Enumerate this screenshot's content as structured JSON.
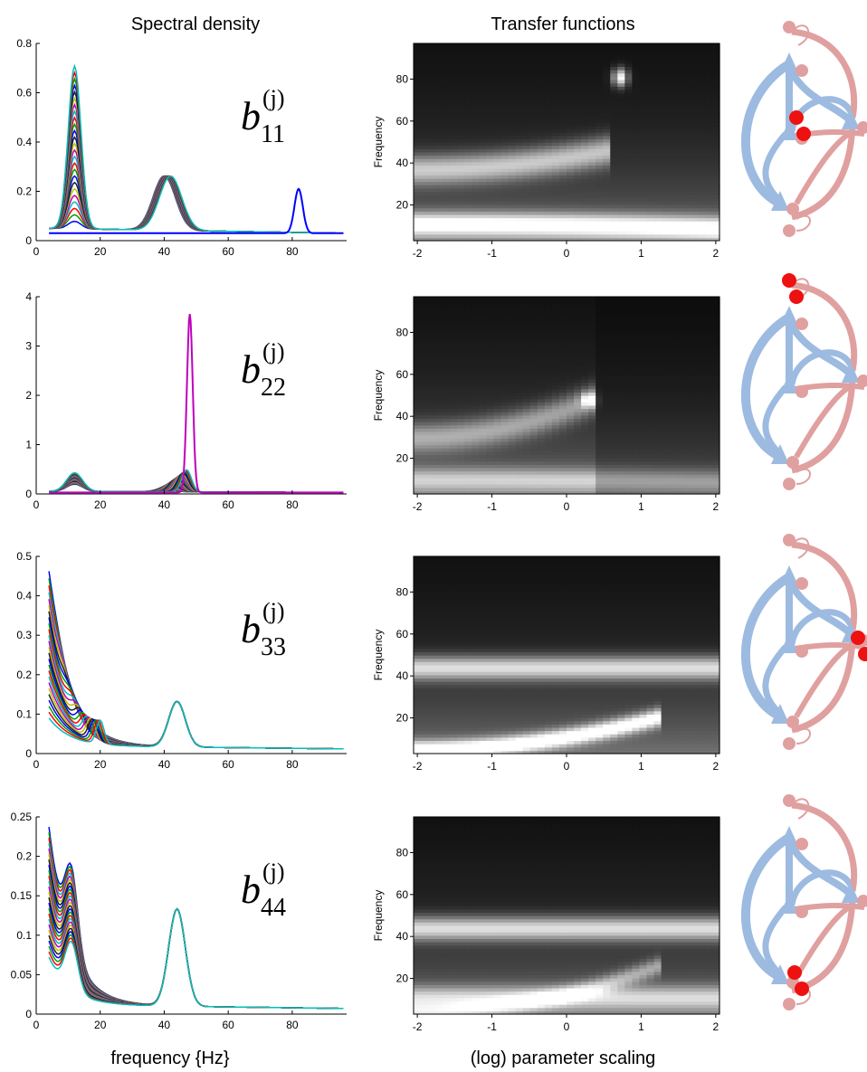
{
  "titles": {
    "spectral": "Spectral density",
    "transfer": "Transfer functions"
  },
  "xlabels": {
    "spectral": "frequency {Hz}",
    "transfer": "(log) parameter scaling"
  },
  "heatmap_ylabel": "Frequency",
  "colors": {
    "node_blue": "#9dbbe0",
    "node_pink": "#e0a0a0",
    "highlight_red": "#ee1111",
    "line_colors": [
      "#0000ff",
      "#00a000",
      "#ff0000",
      "#00bfbf",
      "#bf00bf",
      "#bfbf00",
      "#202020"
    ]
  },
  "chart_data": [
    {
      "type": "line",
      "panel": "spectral",
      "label": "b11(j)",
      "label_base": "b",
      "label_sub": "11",
      "label_sup": "(j)",
      "xlim": [
        0,
        97
      ],
      "ylim": [
        0,
        0.8
      ],
      "xticks": [
        0,
        20,
        40,
        60,
        80
      ],
      "yticks": [
        0,
        0.2,
        0.4,
        0.6,
        0.8
      ],
      "ytick_labels": [
        "0",
        "0.2",
        "0.4",
        "0.6",
        "0.8"
      ],
      "n_series": 25,
      "baseline": 0.05,
      "peaks_start": [
        [
          12,
          0.03,
          2
        ],
        [
          40,
          0.22,
          3.5
        ]
      ],
      "peaks_end": [
        [
          12,
          0.66,
          2
        ],
        [
          42,
          0.22,
          3.5
        ]
      ],
      "outlier_peak": [
        82,
        0.18,
        1.3
      ]
    },
    {
      "type": "line",
      "panel": "spectral",
      "label": "b22(j)",
      "label_base": "b",
      "label_sub": "22",
      "label_sup": "(j)",
      "xlim": [
        0,
        97
      ],
      "ylim": [
        0,
        4
      ],
      "xticks": [
        0,
        20,
        40,
        60,
        80
      ],
      "yticks": [
        0,
        1,
        2,
        3,
        4
      ],
      "ytick_labels": [
        "0",
        "1",
        "2",
        "3",
        "4"
      ],
      "n_series": 25,
      "baseline": 0.05,
      "peaks_start": [
        [
          12,
          0.15,
          2.5
        ],
        [
          40,
          0.05,
          3
        ]
      ],
      "peaks_end": [
        [
          12,
          0.38,
          2.5
        ],
        [
          47,
          0.45,
          1.5
        ]
      ],
      "outlier_peak": [
        48,
        3.62,
        0.9
      ]
    },
    {
      "type": "line",
      "panel": "spectral",
      "label": "b33(j)",
      "label_base": "b",
      "label_sub": "33",
      "label_sup": "(j)",
      "xlim": [
        0,
        97
      ],
      "ylim": [
        0,
        0.5
      ],
      "xticks": [
        0,
        20,
        40,
        60,
        80
      ],
      "yticks": [
        0,
        0.1,
        0.2,
        0.3,
        0.4,
        0.5
      ],
      "ytick_labels": [
        "0",
        "0.1",
        "0.2",
        "0.3",
        "0.4",
        "0.5"
      ],
      "n_series": 25,
      "baseline": 0.02,
      "lowfreq_start": 0.43,
      "lowfreq_end": 0.07,
      "peaks_start": [
        [
          6,
          0.02,
          2
        ],
        [
          44,
          0.115,
          2.6
        ]
      ],
      "peaks_end": [
        [
          20,
          0.06,
          1.2
        ],
        [
          44,
          0.115,
          2.6
        ]
      ],
      "outlier_peak": null
    },
    {
      "type": "line",
      "panel": "spectral",
      "label": "b44(j)",
      "label_base": "b",
      "label_sub": "44",
      "label_sup": "(j)",
      "xlim": [
        0,
        97
      ],
      "ylim": [
        0,
        0.25
      ],
      "xticks": [
        0,
        20,
        40,
        60,
        80
      ],
      "yticks": [
        0,
        0.05,
        0.1,
        0.15,
        0.2,
        0.25
      ],
      "ytick_labels": [
        "0",
        "0.05",
        "0.1",
        "0.15",
        "0.2",
        "0.25"
      ],
      "n_series": 25,
      "baseline": 0.012,
      "lowfreq_start": 0.225,
      "lowfreq_end": 0.06,
      "peaks_start": [
        [
          11,
          0.1,
          2
        ],
        [
          44,
          0.123,
          2.6
        ]
      ],
      "peaks_end": [
        [
          11,
          0.06,
          2
        ],
        [
          44,
          0.123,
          2.6
        ]
      ],
      "outlier_peak": null
    },
    {
      "type": "heatmap",
      "panel": "transfer",
      "xlim": [
        -2.05,
        2.05
      ],
      "ylim": [
        3,
        97
      ],
      "xticks": [
        -2,
        -1,
        0,
        1,
        2
      ],
      "yticks": [
        20,
        40,
        60,
        80
      ],
      "nx": 42,
      "ny": 60,
      "ridges": [
        {
          "f0": 37,
          "f1": 46,
          "x_end": 0.55,
          "w": 5,
          "a": 0.6
        },
        {
          "f0": 11,
          "f1": 9,
          "x_end": 2.05,
          "w": 4,
          "a": 0.75
        }
      ],
      "spot": {
        "x": 0.72,
        "f": 81,
        "w": 3,
        "a": 0.9
      },
      "drop_after": null
    },
    {
      "type": "heatmap",
      "panel": "transfer",
      "xlim": [
        -2.05,
        2.05
      ],
      "ylim": [
        3,
        97
      ],
      "xticks": [
        -2,
        -1,
        0,
        1,
        2
      ],
      "yticks": [
        20,
        40,
        60,
        80
      ],
      "nx": 42,
      "ny": 60,
      "ridges": [
        {
          "f0": 30,
          "f1": 48,
          "x_end": 0.35,
          "w": 5,
          "a": 0.45
        },
        {
          "f0": 10,
          "f1": 9,
          "x_end": 2.05,
          "w": 4,
          "a": 0.45
        }
      ],
      "spot": {
        "x": 0.3,
        "f": 48,
        "w": 2.5,
        "a": 0.6
      },
      "drop_after": 0.42
    },
    {
      "type": "heatmap",
      "panel": "transfer",
      "xlim": [
        -2.05,
        2.05
      ],
      "ylim": [
        3,
        97
      ],
      "xticks": [
        -2,
        -1,
        0,
        1,
        2
      ],
      "yticks": [
        20,
        40,
        60,
        80
      ],
      "nx": 42,
      "ny": 60,
      "ridges": [
        {
          "f0": 44,
          "f1": 44,
          "x_end": 2.05,
          "w": 4,
          "a": 0.7
        },
        {
          "f0": 5,
          "f1": 21,
          "x_end": 1.3,
          "w": 3,
          "a": 0.8
        }
      ],
      "spot": null,
      "drop_after": null
    },
    {
      "type": "heatmap",
      "panel": "transfer",
      "xlim": [
        -2.05,
        2.05
      ],
      "ylim": [
        3,
        97
      ],
      "xticks": [
        -2,
        -1,
        0,
        1,
        2
      ],
      "yticks": [
        20,
        40,
        60,
        80
      ],
      "nx": 42,
      "ny": 60,
      "ridges": [
        {
          "f0": 44,
          "f1": 44,
          "x_end": 2.05,
          "w": 4,
          "a": 0.7
        },
        {
          "f0": 11,
          "f1": 11,
          "x_end": 2.05,
          "w": 4,
          "a": 0.5
        },
        {
          "f0": 4,
          "f1": 27,
          "x_end": 1.3,
          "w": 3,
          "a": 0.4
        }
      ],
      "spot": null,
      "drop_after": null
    }
  ],
  "diagrams": [
    {
      "highlight": "node2"
    },
    {
      "highlight": "node1"
    },
    {
      "highlight": "node3"
    },
    {
      "highlight": "node4"
    }
  ]
}
